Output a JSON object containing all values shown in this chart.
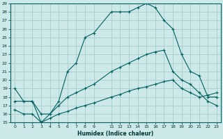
{
  "xlabel": "Humidex (Indice chaleur)",
  "background_color": "#cce8e8",
  "grid_color": "#a8cccc",
  "line_color": "#006060",
  "xlim": [
    -0.5,
    23.5
  ],
  "ylim": [
    15,
    29
  ],
  "xticks": [
    0,
    1,
    2,
    3,
    4,
    5,
    6,
    7,
    8,
    9,
    11,
    12,
    13,
    14,
    15,
    16,
    17,
    18,
    19,
    20,
    21,
    22,
    23
  ],
  "yticks": [
    15,
    16,
    17,
    18,
    19,
    20,
    21,
    22,
    23,
    24,
    25,
    26,
    27,
    28,
    29
  ],
  "line1_x": [
    0,
    1,
    2,
    3,
    4,
    5,
    6,
    7,
    8,
    9,
    11,
    12,
    13,
    14,
    15,
    16,
    17,
    18,
    19,
    20,
    21,
    22,
    23
  ],
  "line1_y": [
    19,
    17.5,
    17.5,
    15,
    16,
    17.5,
    21,
    22,
    25,
    25.5,
    28,
    28,
    28,
    28.5,
    29,
    28.5,
    27,
    26,
    23,
    21,
    20.5,
    18,
    18
  ],
  "line2_x": [
    0,
    2,
    3,
    4,
    5,
    6,
    7,
    8,
    9,
    11,
    12,
    13,
    14,
    15,
    16,
    17,
    18,
    19,
    20,
    21,
    22,
    23
  ],
  "line2_y": [
    17.5,
    17.5,
    16,
    16,
    17,
    18,
    18.5,
    19,
    19.5,
    21,
    21.5,
    22,
    22.5,
    23,
    23.3,
    23.5,
    21,
    20,
    19.5,
    18.5,
    17.5,
    17
  ],
  "line3_x": [
    0,
    1,
    2,
    3,
    4,
    5,
    6,
    7,
    8,
    9,
    11,
    12,
    13,
    14,
    15,
    16,
    17,
    18,
    19,
    20,
    21,
    22,
    23
  ],
  "line3_y": [
    16.5,
    16,
    16,
    15,
    15.5,
    16,
    16.3,
    16.7,
    17,
    17.3,
    18,
    18.3,
    18.7,
    19,
    19.2,
    19.5,
    19.8,
    20,
    19,
    18.5,
    18,
    18.2,
    18.5
  ]
}
